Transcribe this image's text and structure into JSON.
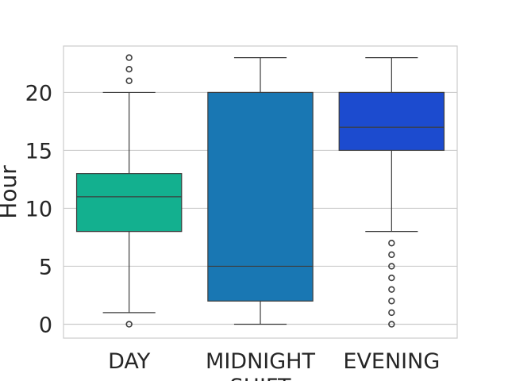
{
  "chart_data": {
    "type": "box",
    "title": "",
    "xlabel": "",
    "ylabel": "Hour",
    "ylim": [
      -1.2,
      24
    ],
    "yticks": [
      0,
      5,
      10,
      15,
      20
    ],
    "grid": "horizontal",
    "categories": [
      "DAY",
      "MIDNIGHT SHIFT",
      "EVENING"
    ],
    "category_labels": [
      [
        "DAY"
      ],
      [
        "MIDNIGHT",
        "SHIFT"
      ],
      [
        "EVENING"
      ]
    ],
    "colors": [
      "#13b08f",
      "#1977b3",
      "#1c4bcf"
    ],
    "boxes": [
      {
        "category": "DAY",
        "whisker_low": 1,
        "q1": 8,
        "median": 11,
        "q3": 13,
        "whisker_high": 20,
        "outliers": [
          0,
          21,
          22,
          23
        ]
      },
      {
        "category": "MIDNIGHT SHIFT",
        "whisker_low": 0,
        "q1": 2,
        "median": 5,
        "q3": 20,
        "whisker_high": 23,
        "outliers": []
      },
      {
        "category": "EVENING",
        "whisker_low": 8,
        "q1": 15,
        "median": 17,
        "q3": 20,
        "whisker_high": 23,
        "outliers": [
          0,
          1,
          2,
          3,
          4,
          5,
          6,
          7
        ]
      }
    ]
  }
}
